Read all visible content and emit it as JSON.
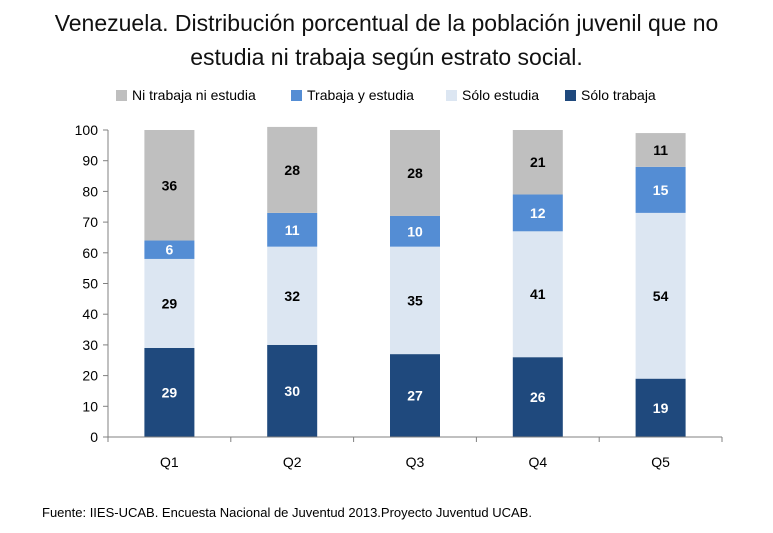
{
  "title": {
    "line1": "Venezuela. Distribución porcentual de la  población juvenil que no",
    "line2": "estudia ni trabaja según estrato social."
  },
  "source": "Fuente: IIES-UCAB. Encuesta Nacional de Juventud 2013.Proyecto Juventud UCAB.",
  "chart_data": {
    "type": "bar",
    "stacked": true,
    "categories": [
      "Q1",
      "Q2",
      "Q3",
      "Q4",
      "Q5"
    ],
    "series": [
      {
        "name": "Sólo trabaja",
        "color": "#1f497d",
        "label_color": "#ffffff",
        "values": [
          29,
          30,
          27,
          26,
          19
        ]
      },
      {
        "name": "Sólo estudia",
        "color": "#dce6f2",
        "label_color": "#000000",
        "values": [
          29,
          32,
          35,
          41,
          54
        ]
      },
      {
        "name": "Trabaja y estudia",
        "color": "#548dd4",
        "label_color": "#ffffff",
        "values": [
          6,
          11,
          10,
          12,
          15
        ]
      },
      {
        "name": "Ni trabaja ni estudia",
        "color": "#bfbfbf",
        "label_color": "#000000",
        "values": [
          36,
          28,
          28,
          21,
          11
        ]
      }
    ],
    "legend_order": [
      3,
      2,
      1,
      0
    ],
    "legend_position": "top",
    "ylim": [
      0,
      100
    ],
    "yticks": [
      0,
      10,
      20,
      30,
      40,
      50,
      60,
      70,
      80,
      90,
      100
    ],
    "grid": false
  }
}
